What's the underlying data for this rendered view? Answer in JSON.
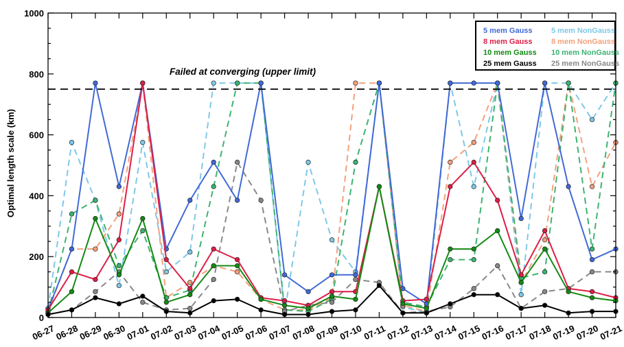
{
  "chart_data": {
    "type": "line",
    "title": "",
    "xlabel": "",
    "ylabel": "Optimal length scale (km)",
    "ylim": [
      0,
      1000
    ],
    "yticks": [
      0,
      200,
      400,
      600,
      800,
      1000
    ],
    "grid": false,
    "legend_position": "top-right",
    "categories": [
      "06-27",
      "06-28",
      "06-29",
      "06-30",
      "07-01",
      "07-02",
      "07-03",
      "07-04",
      "07-05",
      "07-06",
      "07-07",
      "07-08",
      "07-09",
      "07-10",
      "07-11",
      "07-12",
      "07-13",
      "07-14",
      "07-15",
      "07-16",
      "07-17",
      "07-18",
      "07-19",
      "07-20",
      "07-21"
    ],
    "reference_line": {
      "value": 750,
      "label": "Failed at converging (upper limit)",
      "style": "dashed",
      "color": "#000000"
    },
    "series": [
      {
        "name": "5 mem Gauss",
        "color": "#4169d6",
        "dashed": false,
        "values": [
          25,
          225,
          770,
          430,
          770,
          225,
          385,
          510,
          385,
          770,
          140,
          85,
          140,
          140,
          770,
          95,
          45,
          770,
          770,
          770,
          325,
          770,
          430,
          190,
          225
        ]
      },
      {
        "name": "8 mem Gauss",
        "color": "#dc1e46",
        "dashed": false,
        "values": [
          25,
          150,
          125,
          255,
          770,
          190,
          95,
          225,
          190,
          65,
          55,
          40,
          85,
          85,
          430,
          55,
          60,
          430,
          510,
          385,
          140,
          285,
          95,
          85,
          65
        ]
      },
      {
        "name": "10 mem Gauss",
        "color": "#138a13",
        "dashed": false,
        "values": [
          15,
          85,
          325,
          140,
          325,
          50,
          75,
          170,
          170,
          60,
          40,
          30,
          70,
          60,
          430,
          45,
          30,
          225,
          225,
          285,
          115,
          225,
          85,
          65,
          55
        ]
      },
      {
        "name": "25 mem Gauss",
        "color": "#000000",
        "dashed": false,
        "values": [
          10,
          25,
          65,
          45,
          70,
          20,
          15,
          55,
          60,
          25,
          10,
          10,
          20,
          25,
          105,
          15,
          15,
          45,
          75,
          75,
          30,
          40,
          15,
          20,
          20
        ]
      },
      {
        "name": "5 mem NonGauss",
        "color": "#7ec8e8",
        "dashed": true,
        "values": [
          30,
          575,
          385,
          105,
          575,
          150,
          215,
          770,
          770,
          770,
          15,
          510,
          255,
          150,
          770,
          35,
          15,
          770,
          430,
          770,
          75,
          770,
          770,
          650,
          770
        ]
      },
      {
        "name": "8 mem NonGauss",
        "color": "#f4a07c",
        "dashed": true,
        "values": [
          20,
          225,
          225,
          340,
          770,
          65,
          115,
          170,
          150,
          60,
          25,
          25,
          65,
          770,
          770,
          40,
          20,
          510,
          575,
          770,
          115,
          255,
          770,
          430,
          575
        ]
      },
      {
        "name": "10 mem NonGauss",
        "color": "#3cb371",
        "dashed": true,
        "values": [
          15,
          340,
          385,
          170,
          285,
          65,
          90,
          430,
          770,
          770,
          25,
          20,
          60,
          510,
          770,
          50,
          35,
          190,
          190,
          770,
          130,
          150,
          770,
          225,
          770
        ]
      },
      {
        "name": "25 mem NonGauss",
        "color": "#888888",
        "dashed": true,
        "values": [
          10,
          25,
          85,
          150,
          50,
          25,
          30,
          125,
          510,
          385,
          20,
          40,
          50,
          125,
          115,
          15,
          20,
          35,
          95,
          170,
          30,
          85,
          95,
          150,
          150
        ]
      }
    ]
  }
}
